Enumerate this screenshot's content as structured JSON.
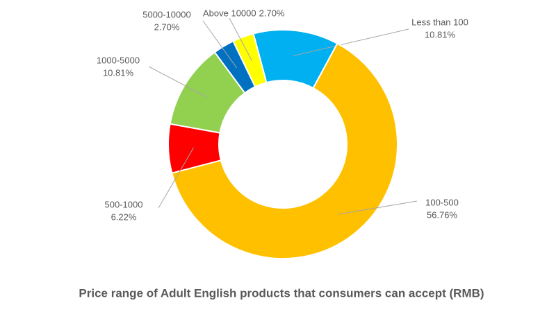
{
  "chart_data": {
    "type": "pie",
    "title": "Price range of Adult English products that consumers can accept (RMB)",
    "categories": [
      "Less than 100",
      "100-500",
      "500-1000",
      "1000-5000",
      "5000-10000",
      "Above 10000"
    ],
    "values": [
      10.81,
      56.76,
      6.22,
      10.81,
      2.7,
      2.7
    ],
    "value_labels": [
      "10.81%",
      "56.76%",
      "6.22%",
      "10.81%",
      "2.70%",
      "2.70%"
    ],
    "colors": [
      "#00b0f0",
      "#ffc000",
      "#ff0000",
      "#92d050",
      "#0070c0",
      "#ffff00"
    ]
  }
}
